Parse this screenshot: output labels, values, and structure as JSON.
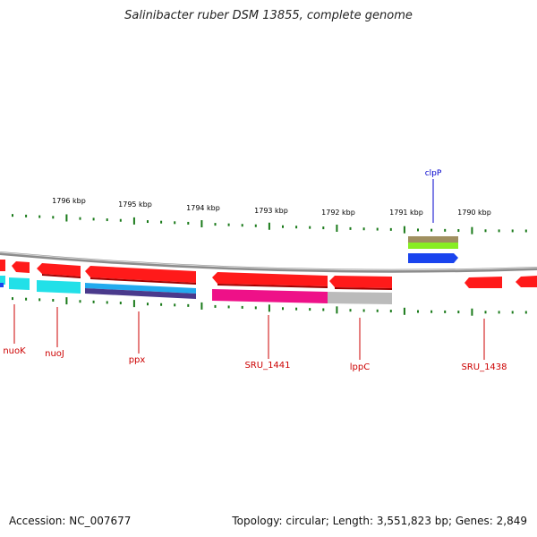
{
  "title": "Salinibacter ruber DSM 13855, complete genome",
  "accession": "Accession: NC_007677",
  "topology": "Topology: circular; Length: 3,551,823 bp; Genes: 2,849",
  "colors": {
    "red": "#ff1a1a",
    "dark_red": "#c00000",
    "gene_label": "#cc0000",
    "clp_label": "#0000cc",
    "tick": "#1a7a1a",
    "backbone": "#8c8c8c",
    "cyan": "#22e0e8",
    "blue": "#1a44ee",
    "navy": "#4a3a8c",
    "magenta": "#ee1188",
    "gray": "#bbbbbb",
    "olive": "#a09060",
    "lime": "#88ee22"
  },
  "kbp_labels": [
    "1796 kbp",
    "1795 kbp",
    "1794 kbp",
    "1793 kbp",
    "1792 kbp",
    "1791 kbp",
    "1790 kbp"
  ],
  "gene_labels": [
    "nuoK",
    "nuoJ",
    "ppx",
    "SRU_1441",
    "lppC",
    "SRU_1438"
  ],
  "top_gene_label": "clpP"
}
